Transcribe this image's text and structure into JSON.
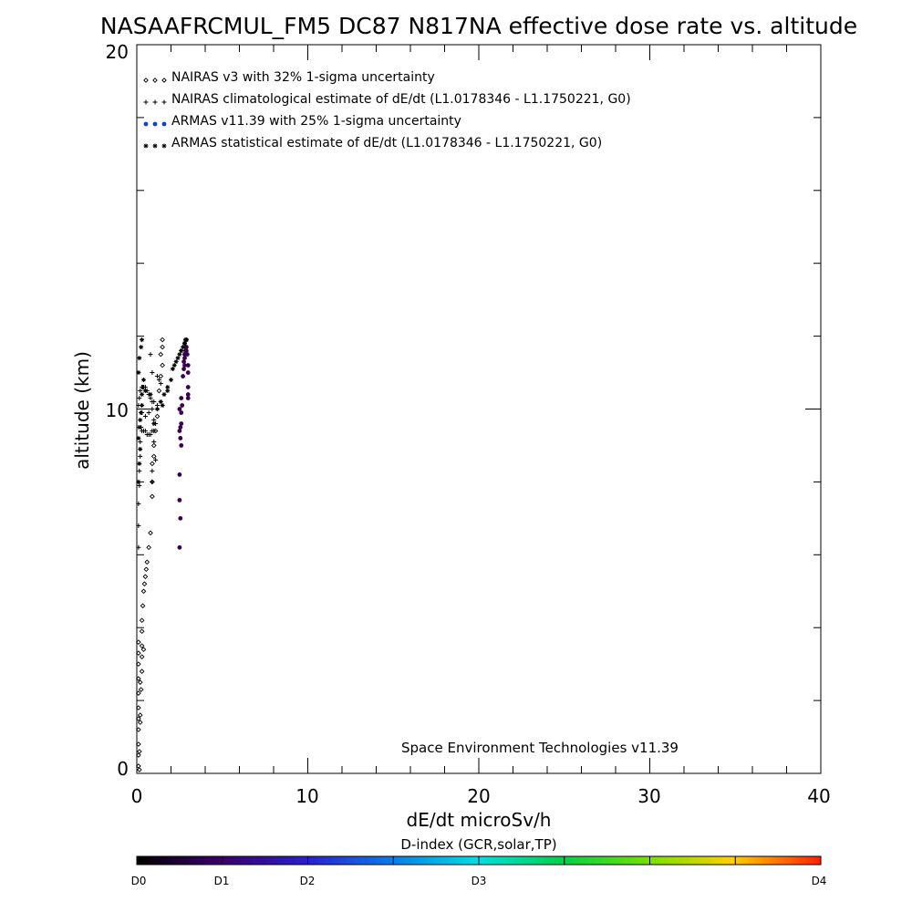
{
  "chart_data": {
    "type": "scatter",
    "title": "NASAAFRCMUL_FM5 DC87 N817NA effective dose rate vs. altitude",
    "xlabel": "dE/dt microSv/h",
    "ylabel": "altitude (km)",
    "xlim": [
      0,
      40
    ],
    "ylim": [
      0,
      20
    ],
    "x_ticks": [
      "0",
      "10",
      "20",
      "30",
      "40"
    ],
    "y_ticks": [
      "0",
      "10",
      "20"
    ],
    "grid": false,
    "legend_position": "top-left",
    "legend": [
      {
        "marker": "diamond",
        "label": "NAIRAS v3 with 32% 1-sigma uncertainty"
      },
      {
        "marker": "plus",
        "label": "NAIRAS climatological estimate of dE/dt (L1.0178346 - L1.1750221, G0)"
      },
      {
        "marker": "dot",
        "label": "ARMAS v11.39 with 25% 1-sigma uncertainty"
      },
      {
        "marker": "asterisk",
        "label": "ARMAS statistical estimate of dE/dt (L1.0178346 - L1.1750221, G0)"
      }
    ],
    "credit": "Space Environment Technologies v11.39",
    "colorbar": {
      "title": "D-index (GCR,solar,TP)",
      "labels": [
        {
          "text": "D0",
          "value": 0
        },
        {
          "text": "D1",
          "value": 1
        },
        {
          "text": "D2",
          "value": 2
        },
        {
          "text": "D3",
          "value": 3
        },
        {
          "text": "D4",
          "value": 4
        }
      ]
    },
    "series": [
      {
        "marker": "diamond",
        "x": [
          0.1,
          0.1,
          0.1,
          0.1,
          0.1,
          0.1,
          0.1,
          0.1,
          0.1,
          0.1,
          0.1,
          0.15,
          0.15,
          0.2,
          0.2,
          0.2,
          0.25,
          0.3,
          0.3,
          0.3,
          0.3,
          0.35,
          0.4,
          0.45,
          0.5,
          0.55,
          0.6,
          0.7,
          0.8,
          0.9,
          0.3,
          0.4,
          0.9,
          1.0,
          1.1,
          1.2,
          0.9,
          1.0,
          1.3,
          1.4,
          1.5,
          1.4,
          1.5,
          1.5
        ],
        "y": [
          0.2,
          0.5,
          0.8,
          1.2,
          1.5,
          1.8,
          2.2,
          2.6,
          3.0,
          3.3,
          3.6,
          0.1,
          0.6,
          1.4,
          1.6,
          2.5,
          2.3,
          2.8,
          3.2,
          3.5,
          3.9,
          4.6,
          5.0,
          5.2,
          5.4,
          5.6,
          5.8,
          6.2,
          6.6,
          7.6,
          4.2,
          3.4,
          8.5,
          9.0,
          9.4,
          9.8,
          8.0,
          8.7,
          10.5,
          10.9,
          11.2,
          11.5,
          11.7,
          11.9
        ]
      },
      {
        "marker": "plus",
        "x": [
          0.1,
          0.1,
          0.1,
          0.15,
          0.15,
          0.2,
          0.2,
          0.25,
          0.3,
          0.1,
          0.15,
          0.2,
          0.3,
          0.4,
          0.5,
          0.6,
          0.7,
          0.8,
          0.9,
          0.3,
          0.4,
          0.5,
          0.6,
          0.7,
          0.8,
          0.9,
          1.0,
          0.5,
          0.7,
          0.9,
          1.0,
          1.1,
          1.2,
          1.3,
          0.9,
          1.1,
          1.2,
          1.4,
          0.8,
          0.9,
          1.0,
          1.0,
          0.9
        ],
        "y": [
          6.2,
          6.8,
          7.4,
          7.9,
          8.3,
          8.7,
          9.1,
          9.5,
          9.9,
          10.1,
          10.3,
          10.5,
          10.6,
          10.6,
          10.6,
          10.5,
          10.4,
          10.3,
          10.2,
          9.4,
          9.4,
          9.4,
          9.3,
          9.3,
          9.3,
          9.4,
          9.4,
          9.8,
          9.9,
          10.0,
          9.7,
          9.6,
          10.1,
          10.8,
          8.3,
          8.6,
          10.9,
          10.7,
          11.5,
          11.0,
          10.2,
          9.1,
          8.0
        ]
      },
      {
        "marker": "dot",
        "x": [
          2.5,
          2.55,
          2.5,
          2.5,
          2.6,
          2.55,
          2.5,
          2.55,
          2.6,
          2.6,
          2.5,
          2.65,
          2.6,
          2.7,
          2.75,
          2.8,
          2.75,
          2.8,
          2.8,
          2.85,
          2.9,
          2.8,
          2.85,
          2.9,
          3.0,
          3.0,
          3.0,
          3.0,
          3.0,
          2.95,
          2.9,
          2.85
        ],
        "y": [
          6.2,
          7.0,
          7.5,
          8.2,
          9.0,
          9.2,
          9.4,
          9.5,
          9.6,
          9.9,
          10.0,
          10.1,
          10.3,
          10.9,
          11.1,
          11.2,
          11.3,
          11.4,
          11.5,
          11.6,
          11.7,
          11.8,
          11.9,
          11.9,
          11.2,
          11.0,
          10.6,
          10.3,
          10.4,
          11.5,
          11.6,
          11.7
        ]
      },
      {
        "marker": "asterisk",
        "x": [
          0.1,
          0.15,
          0.2,
          0.1,
          0.15,
          0.2,
          0.25,
          0.3,
          0.3,
          0.35,
          0.4,
          0.1,
          0.15,
          0.25,
          0.3,
          0.5,
          0.8,
          1.0,
          1.2,
          1.4,
          1.6,
          1.8,
          2.0,
          1.5,
          1.8,
          2.1,
          2.3,
          2.5,
          2.6,
          2.7,
          2.8,
          2.9,
          2.2,
          2.4,
          2.6
        ],
        "y": [
          8.0,
          8.5,
          8.9,
          9.2,
          9.5,
          9.7,
          9.9,
          10.1,
          10.4,
          10.6,
          10.8,
          11.0,
          11.4,
          11.7,
          11.9,
          10.5,
          10.4,
          9.6,
          10.0,
          10.2,
          10.4,
          10.6,
          10.8,
          10.1,
          10.5,
          11.1,
          11.3,
          11.5,
          11.6,
          11.7,
          11.8,
          11.9,
          11.2,
          11.4,
          11.6
        ]
      }
    ]
  }
}
